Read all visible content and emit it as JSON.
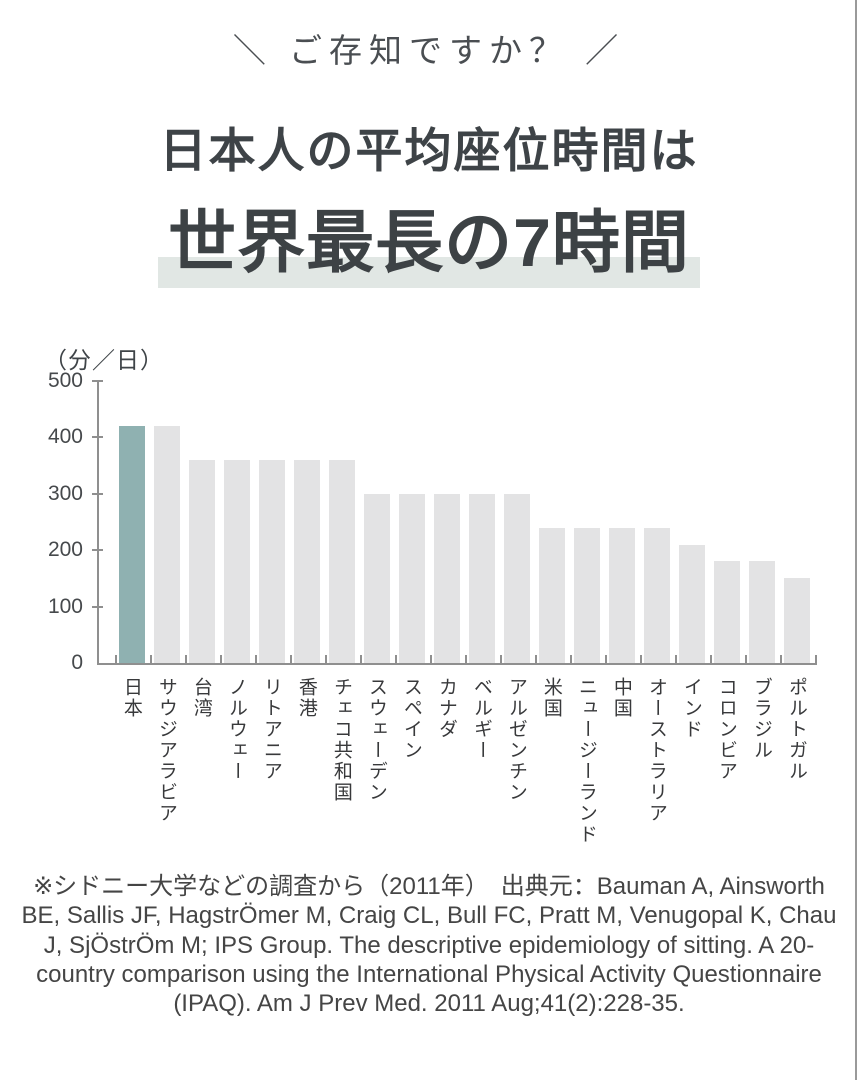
{
  "header": {
    "kicker": "＼ ご存知ですか？ ／",
    "title": "日本人の平均座位時間は",
    "headline": "世界最長の7時間",
    "headline_highlight_color": "#e1e7e4"
  },
  "chart_data": {
    "type": "bar",
    "title": "",
    "unit_label": "（分／日）",
    "xlabel": "",
    "ylabel": "分／日",
    "categories": [
      "日本",
      "サウジアラビア",
      "台湾",
      "ノルウェー",
      "リトアニア",
      "香港",
      "チェコ共和国",
      "スウェーデン",
      "スペイン",
      "カナダ",
      "ベルギー",
      "アルゼンチン",
      "米国",
      "ニュージーランド",
      "中国",
      "オーストラリア",
      "インド",
      "コロンビア",
      "ブラジル",
      "ポルトガル"
    ],
    "values": [
      420,
      420,
      360,
      360,
      360,
      360,
      360,
      300,
      300,
      300,
      300,
      300,
      240,
      240,
      240,
      240,
      210,
      180,
      180,
      150
    ],
    "highlighted_category": "日本",
    "highlight_index": 0,
    "ylim": [
      0,
      500
    ],
    "yticks": [
      0,
      100,
      200,
      300,
      400,
      500
    ],
    "grid": false,
    "legend": false,
    "colors": {
      "highlight_bar": "#8fb1b1",
      "bar": "#e3e3e4",
      "axis": "#8f8f8f"
    }
  },
  "footer": {
    "citation": "※シドニー大学などの調査から（2011年）　出典元：Bauman A, Ainsworth BE, Sallis JF, HagstrÖmer M, Craig CL, Bull FC, Pratt M, Venugopal K, Chau J, SjÖstrÖm M; IPS Group. The descriptive epidemiology of sitting. A 20-country comparison using the International Physical Activity Questionnaire (IPAQ). Am J Prev Med. 2011 Aug;41(2):228-35."
  }
}
